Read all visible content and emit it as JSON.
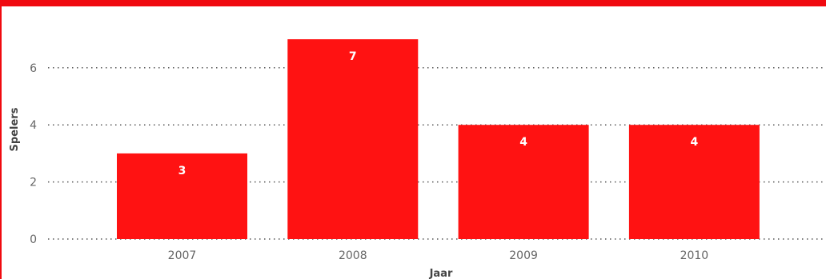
{
  "chart_data": {
    "type": "bar",
    "categories": [
      "2007",
      "2008",
      "2009",
      "2010"
    ],
    "values": [
      3,
      7,
      4,
      4
    ],
    "xlabel": "Jaar",
    "ylabel": "Spelers",
    "ylim": [
      0,
      7.6
    ],
    "yticks": [
      0,
      2,
      4,
      6
    ],
    "grid": true,
    "data_labels": true,
    "bar_color": "#ff1212"
  }
}
